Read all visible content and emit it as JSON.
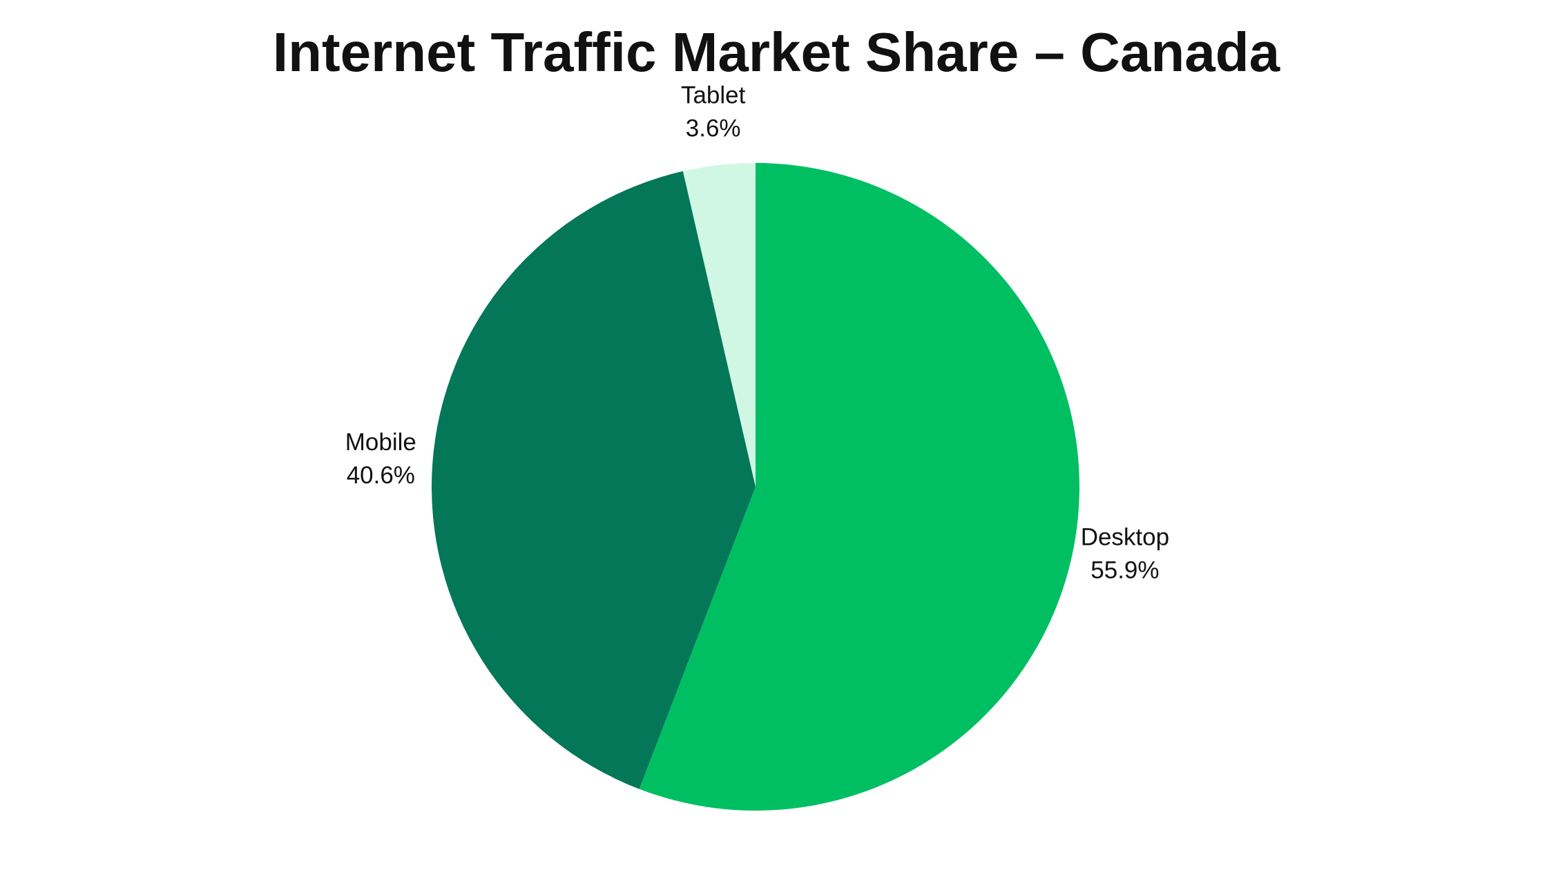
{
  "chart_data": {
    "type": "pie",
    "title": "Internet Traffic Market Share – Canada",
    "categories": [
      "Desktop",
      "Mobile",
      "Tablet"
    ],
    "values": [
      55.9,
      40.6,
      3.6
    ],
    "value_labels": [
      "55.9%",
      "40.6%",
      "3.6%"
    ],
    "colors": [
      "#00bf63",
      "#037758",
      "#d0f7e4"
    ]
  }
}
